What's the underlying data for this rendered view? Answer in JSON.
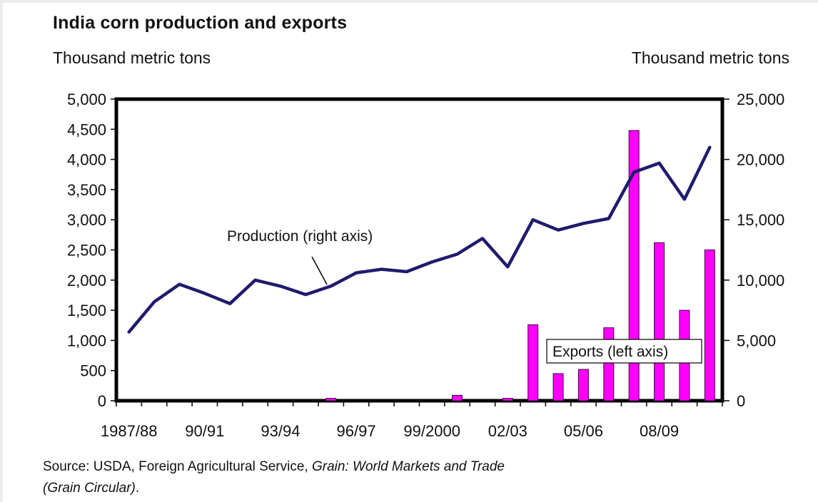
{
  "colors": {
    "production_line": "#1f1b6b",
    "exports_bar": "#ff00ff",
    "exports_bar_edge": "#400040",
    "frame": "#000000"
  },
  "chart_data": {
    "type": "bar",
    "title": "India corn production and exports",
    "ylabel": "Thousand metric tons",
    "y2label": "Thousand metric tons",
    "ylim": [
      0,
      5000
    ],
    "y2lim": [
      0,
      25000
    ],
    "y_ticks": [
      "5,000",
      "4,500",
      "4,000",
      "3,500",
      "3,000",
      "2,500",
      "2,000",
      "1,500",
      "1,000",
      "500",
      "0"
    ],
    "y2_ticks": [
      "25,000",
      "20,000",
      "15,000",
      "10,000",
      "5,000",
      "0"
    ],
    "x_tick_labels": [
      "1987/88",
      "90/91",
      "93/94",
      "96/97",
      "99/2000",
      "02/03",
      "05/06",
      "08/09"
    ],
    "categories": [
      "1987/88",
      "1988/89",
      "1989/90",
      "1990/91",
      "1991/92",
      "1992/93",
      "1993/94",
      "1994/95",
      "1995/96",
      "1996/97",
      "1997/98",
      "1998/99",
      "1999/2000",
      "2000/01",
      "2001/02",
      "2002/03",
      "2003/04",
      "2004/05",
      "2005/06",
      "2006/07",
      "2007/08",
      "2008/09",
      "2009/10",
      "2010/11"
    ],
    "series": [
      {
        "name": "Exports (left axis)",
        "type": "bar",
        "axis": "left",
        "values": [
          0,
          0,
          0,
          0,
          0,
          0,
          0,
          0,
          40,
          0,
          0,
          0,
          0,
          90,
          0,
          40,
          1260,
          450,
          520,
          1210,
          4480,
          2620,
          1500,
          2500
        ]
      },
      {
        "name": "Production (right axis)",
        "type": "line",
        "axis": "right",
        "values": [
          5700,
          8200,
          9650,
          8900,
          8050,
          10000,
          9500,
          8800,
          9500,
          10600,
          10900,
          10700,
          11500,
          12150,
          13450,
          11100,
          15000,
          14150,
          14700,
          15100,
          18950,
          19700,
          16700,
          21000
        ]
      }
    ],
    "annotations": {
      "production_label": "Production (right axis)",
      "exports_label": "Exports (left axis)"
    }
  },
  "source": {
    "prefix": "Source:   USDA, Foreign Agricultural Service, ",
    "italic1": "Grain: World Markets and Trade",
    "italic2": "(Grain Circular)",
    "suffix": "."
  }
}
